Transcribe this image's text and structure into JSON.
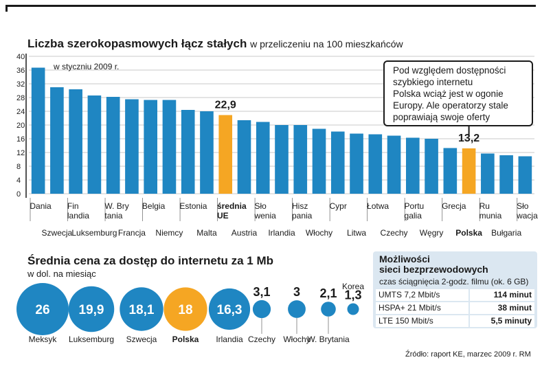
{
  "chart_data": [
    {
      "type": "bar",
      "title": "Liczba szerokopasmowych łącz stałych",
      "title_suffix": "w przeliczeniu na 100 mieszkańców",
      "annotation": "w styczniu 2009 r.",
      "categories": [
        "Dania",
        "Szwecja",
        "Fin-landia",
        "Luksemburg",
        "W. Bry-tania",
        "Francja",
        "Belgia",
        "Niemcy",
        "Estonia",
        "Malta",
        "średnia UE",
        "Austria",
        "Sło-wenia",
        "Irlandia",
        "Hisz-pania",
        "Włochy",
        "Cypr",
        "Litwa",
        "Łotwa",
        "Czechy",
        "Portu-galia",
        "Węgry",
        "Grecja",
        "Polska",
        "Ru-munia",
        "Bułgaria",
        "Sło-wacja"
      ],
      "label_rows": [
        {
          "top": [
            "Dania",
            "Fin|landia",
            "W. Bry|tania",
            "Belgia",
            "Estonia",
            "średnia|UE",
            "Sło|wenia",
            "Hisz|pania",
            "Cypr",
            "Łotwa",
            "Portu|galia",
            "Grecja",
            "Ru|munia",
            "Sło|wacja"
          ]
        },
        {
          "bottom": [
            "Szwecja",
            "Luksemburg",
            "Francja",
            "Niemcy",
            "Malta",
            "Austria",
            "Irlandia",
            "Włochy",
            "Litwa",
            "Czechy",
            "Węgry",
            "Polska",
            "Bułgaria"
          ]
        }
      ],
      "values": [
        36.7,
        31.0,
        30.4,
        28.6,
        28.2,
        27.5,
        27.3,
        27.3,
        24.4,
        24.0,
        22.9,
        21.4,
        20.9,
        20.0,
        20.0,
        18.9,
        18.1,
        17.5,
        17.3,
        16.9,
        16.3,
        16.0,
        13.3,
        13.2,
        11.7,
        11.2,
        10.9
      ],
      "highlight": [
        "średnia UE",
        "Polska"
      ],
      "value_labels": {
        "średnia UE": "22,9",
        "Polska": "13,2"
      },
      "yticks": [
        0,
        4,
        8,
        12,
        16,
        20,
        24,
        28,
        32,
        36,
        40
      ],
      "ylim": [
        0,
        40
      ],
      "grid": true,
      "colors": {
        "bar": "#1f86c2",
        "highlight": "#f5a623",
        "grid": "#c9c9c9"
      }
    },
    {
      "type": "bubble",
      "title": "Średnia cena za dostęp do internetu za 1 Mb",
      "subtitle": "w dol. na miesiąc",
      "categories": [
        "Meksyk",
        "Luksemburg",
        "Szwecja",
        "Polska",
        "Irlandia",
        "Czechy",
        "Włochy",
        "W. Brytania",
        "Korea"
      ],
      "values": [
        26,
        19.9,
        18.1,
        18,
        16.3,
        3.1,
        3,
        2.1,
        1.3
      ],
      "value_labels": [
        "26",
        "19,9",
        "18,1",
        "18",
        "16,3",
        "3,1",
        "3",
        "2,1",
        "1,3"
      ],
      "highlight": [
        "Polska"
      ]
    }
  ],
  "callout": {
    "lines": [
      "Pod względem dostępności",
      "szybkiego internetu",
      "Polska wciąż jest w ogonie",
      "Europy. Ale operatorzy stale",
      "poprawiają swoje oferty"
    ]
  },
  "wireless": {
    "title_line1": "Możliwości",
    "title_line2": "sieci bezprzewodowych",
    "subtitle": "czas ściągnięcia 2-godz. filmu (ok. 6 GB)",
    "rows": [
      {
        "name": "UMTS 7,2 Mbit/s",
        "value": "114 minut"
      },
      {
        "name": "HSPA+ 21 Mbit/s",
        "value": "38 minut"
      },
      {
        "name": "LTE 150 Mbit/s",
        "value": "5,5 minuty"
      }
    ]
  },
  "source": "Źródło: raport KE, marzec 2009 r.   RM"
}
